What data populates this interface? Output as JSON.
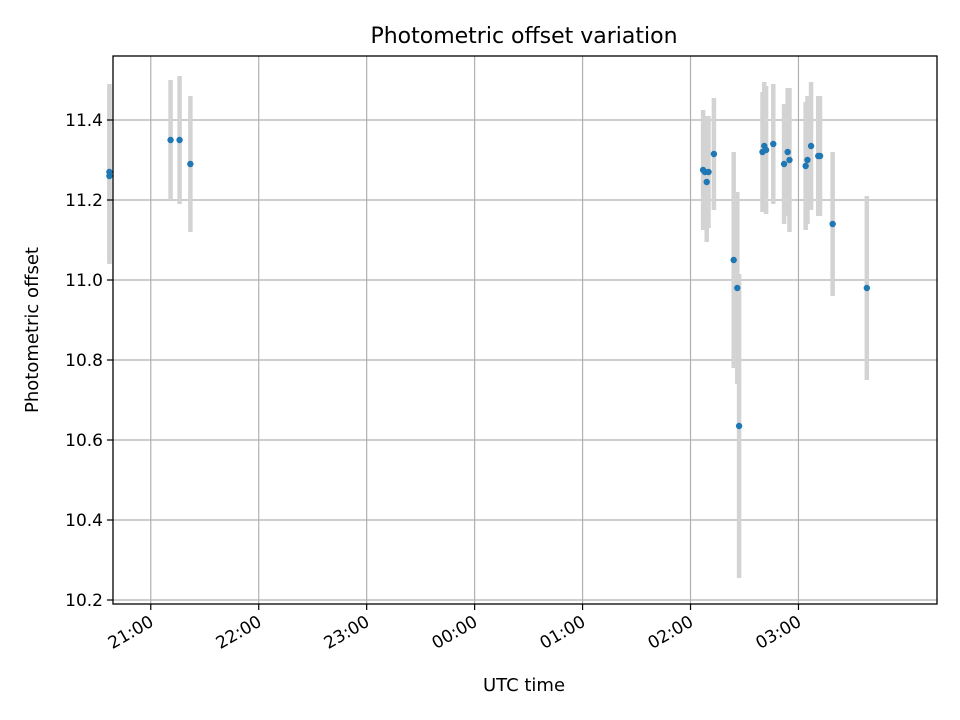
{
  "chart_data": {
    "type": "scatter",
    "title": "Photometric offset variation",
    "xlabel": "UTC time",
    "ylabel": "Photometric offset",
    "x_axis_kind": "time",
    "x_ticks": [
      "21:00",
      "22:00",
      "23:00",
      "00:00",
      "01:00",
      "02:00",
      "03:00"
    ],
    "y_ticks": [
      "10.2",
      "10.4",
      "10.6",
      "10.8",
      "11.0",
      "11.2",
      "11.4"
    ],
    "ylim": [
      10.19,
      11.56
    ],
    "xlim": [
      "20:39",
      "04:17"
    ],
    "grid": true,
    "point_color": "#1f77b4",
    "errorbar_color": "#d3d3d3",
    "series": [
      {
        "points": [
          {
            "x": "20:37",
            "y": 11.26,
            "yerr": 0.22
          },
          {
            "x": "20:37",
            "y": 11.27,
            "yerr": 0.22
          },
          {
            "x": "21:11",
            "y": 11.35,
            "yerr": 0.15
          },
          {
            "x": "21:16",
            "y": 11.35,
            "yerr": 0.16
          },
          {
            "x": "21:22",
            "y": 11.29,
            "yerr": 0.17
          },
          {
            "x": "02:07",
            "y": 11.275,
            "yerr": 0.15
          },
          {
            "x": "02:08",
            "y": 11.27,
            "yerr": 0.14
          },
          {
            "x": "02:09",
            "y": 11.245,
            "yerr": 0.15
          },
          {
            "x": "02:10",
            "y": 11.27,
            "yerr": 0.14
          },
          {
            "x": "02:13",
            "y": 11.315,
            "yerr": 0.14
          },
          {
            "x": "02:24",
            "y": 11.05,
            "yerr": 0.27
          },
          {
            "x": "02:26",
            "y": 10.98,
            "yerr": 0.24
          },
          {
            "x": "02:27",
            "y": 10.635,
            "yerr": 0.38
          },
          {
            "x": "02:40",
            "y": 11.32,
            "yerr": 0.15
          },
          {
            "x": "02:41",
            "y": 11.335,
            "yerr": 0.16
          },
          {
            "x": "02:42",
            "y": 11.325,
            "yerr": 0.16
          },
          {
            "x": "02:46",
            "y": 11.34,
            "yerr": 0.15
          },
          {
            "x": "02:52",
            "y": 11.29,
            "yerr": 0.15
          },
          {
            "x": "02:54",
            "y": 11.32,
            "yerr": 0.16
          },
          {
            "x": "02:55",
            "y": 11.3,
            "yerr": 0.18
          },
          {
            "x": "03:04",
            "y": 11.285,
            "yerr": 0.16
          },
          {
            "x": "03:05",
            "y": 11.3,
            "yerr": 0.16
          },
          {
            "x": "03:07",
            "y": 11.335,
            "yerr": 0.16
          },
          {
            "x": "03:11",
            "y": 11.31,
            "yerr": 0.15
          },
          {
            "x": "03:12",
            "y": 11.31,
            "yerr": 0.15
          },
          {
            "x": "03:19",
            "y": 11.14,
            "yerr": 0.18
          },
          {
            "x": "03:38",
            "y": 10.98,
            "yerr": 0.23
          }
        ]
      }
    ]
  }
}
